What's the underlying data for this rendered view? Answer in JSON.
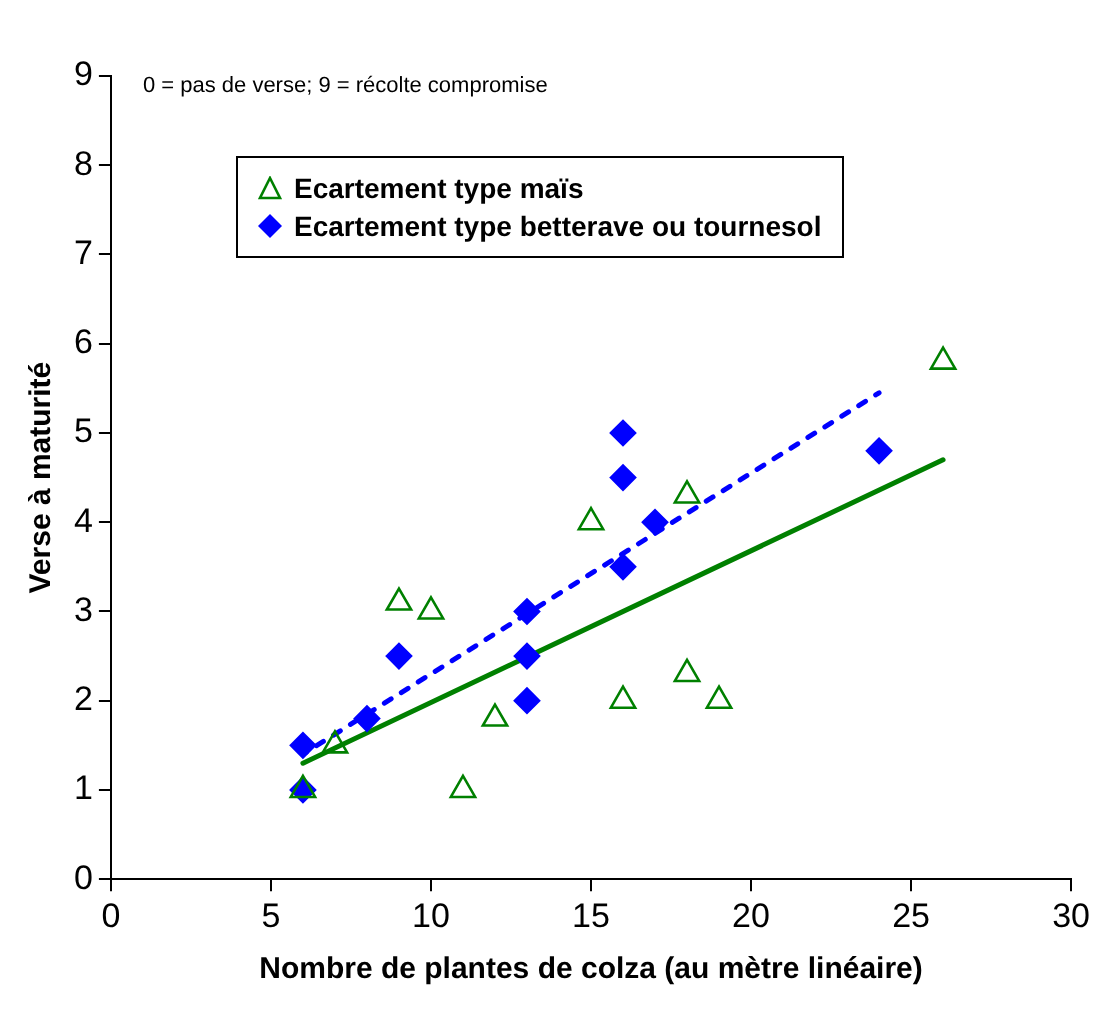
{
  "chart_data": {
    "type": "scatter",
    "xlabel": "Nombre de plantes de colza (au mètre linéaire)",
    "ylabel": "Verse à maturité",
    "annotations": [
      "0 = pas de verse; 9 = récolte compromise"
    ],
    "xlim": [
      0,
      30
    ],
    "xticks": [
      0,
      5,
      10,
      15,
      20,
      25,
      30
    ],
    "ylim": [
      0,
      9
    ],
    "yticks": [
      0,
      1,
      2,
      3,
      4,
      5,
      6,
      7,
      8,
      9
    ],
    "grid": false,
    "legend": "top left",
    "series": [
      {
        "name": "Ecartement type maïs",
        "color": "#008000",
        "marker": "triangle",
        "x": [
          6,
          7,
          9,
          10,
          11,
          12,
          15,
          16,
          18,
          18,
          19,
          26
        ],
        "values": [
          1,
          1.5,
          3.1,
          3,
          1,
          1.8,
          4,
          2,
          4.3,
          2.3,
          2,
          5.8
        ]
      },
      {
        "name": "Ecartement type betterave ou tournesol",
        "color": "#0000ff",
        "marker": "diamond",
        "x": [
          6,
          6,
          8,
          9,
          13,
          13,
          13,
          16,
          16,
          16,
          17,
          24
        ],
        "values": [
          1.5,
          1,
          1.8,
          2.5,
          3,
          2.5,
          2,
          5,
          4.5,
          3.5,
          4,
          4.8
        ]
      },
      {
        "type": "line",
        "color": "#008000",
        "marker": "none",
        "line_style": "solid",
        "x": [
          6,
          26
        ],
        "values": [
          1.3,
          4.7
        ]
      },
      {
        "type": "line",
        "color": "#0000ff",
        "marker": "none",
        "line_style": "dashed",
        "x": [
          6,
          24
        ],
        "values": [
          1.4,
          5.45
        ]
      }
    ]
  }
}
